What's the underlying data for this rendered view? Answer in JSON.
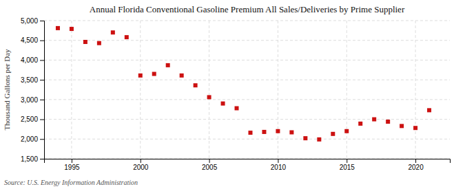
{
  "chart_data": {
    "type": "scatter",
    "title": "Annual Florida Conventional Gasoline Premium All Sales/Deliveries by Prime Supplier",
    "ylabel": "Thousand Gallons per Day",
    "source": "Source: U.S. Energy Information Administration",
    "x": [
      1994,
      1995,
      1996,
      1997,
      1998,
      1999,
      2000,
      2001,
      2002,
      2003,
      2004,
      2005,
      2006,
      2007,
      2008,
      2009,
      2010,
      2011,
      2012,
      2013,
      2014,
      2015,
      2016,
      2017,
      2018,
      2019,
      2020,
      2021
    ],
    "values": [
      4810,
      4790,
      4460,
      4430,
      4700,
      4580,
      3610,
      3650,
      3870,
      3610,
      3360,
      3060,
      2900,
      2780,
      2160,
      2180,
      2200,
      2170,
      2020,
      1990,
      2130,
      2200,
      2390,
      2500,
      2440,
      2330,
      2280,
      2730
    ],
    "color": "#cc1111",
    "marker": "square",
    "xlim": [
      1993.0,
      2022.5
    ],
    "xticks": [
      1995,
      2000,
      2005,
      2010,
      2015,
      2020
    ],
    "ylim": [
      1500,
      5000
    ],
    "yticks": [
      {
        "value": 1500,
        "label": "1,500"
      },
      {
        "value": 2000,
        "label": "2,000"
      },
      {
        "value": 2500,
        "label": "2,500"
      },
      {
        "value": 3000,
        "label": "3,000"
      },
      {
        "value": 3500,
        "label": "3,500"
      },
      {
        "value": 4000,
        "label": "4,000"
      },
      {
        "value": 4500,
        "label": "4,500"
      },
      {
        "value": 5000,
        "label": "5,000"
      }
    ],
    "grid": true
  }
}
